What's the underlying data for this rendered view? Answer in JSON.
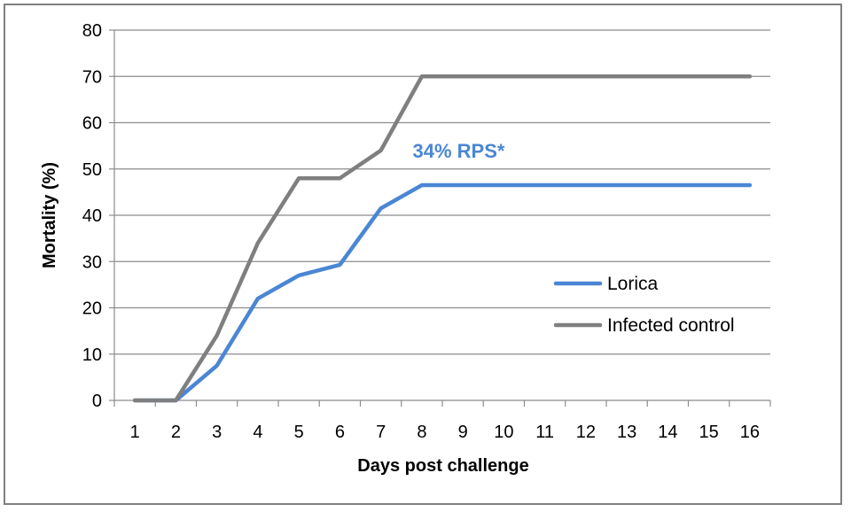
{
  "chart_data": {
    "type": "line",
    "title": "",
    "xlabel": "Days post challenge",
    "ylabel": "Mortality (%)",
    "x": [
      1,
      2,
      3,
      4,
      5,
      6,
      7,
      8,
      9,
      10,
      11,
      12,
      13,
      14,
      15,
      16
    ],
    "xlim": [
      0.5,
      16.5
    ],
    "ylim": [
      0,
      80
    ],
    "yticks": [
      0,
      10,
      20,
      30,
      40,
      50,
      60,
      70,
      80
    ],
    "grid": "horizontal",
    "legend_position": "right",
    "series": [
      {
        "name": "Lorica",
        "color": "#4a86d4",
        "values": [
          0,
          0,
          7.5,
          22,
          27,
          29.3,
          41.5,
          46.5,
          46.5,
          46.5,
          46.5,
          46.5,
          46.5,
          46.5,
          46.5,
          46.5
        ]
      },
      {
        "name": "Infected control",
        "color": "#7f7f7f",
        "values": [
          0,
          0,
          14,
          34,
          48,
          48,
          54,
          70,
          70,
          70,
          70,
          70,
          70,
          70,
          70,
          70
        ]
      }
    ],
    "annotation": {
      "text": "34% RPS*",
      "color": "#4a86d4",
      "x": 8.9,
      "y": 54
    }
  }
}
